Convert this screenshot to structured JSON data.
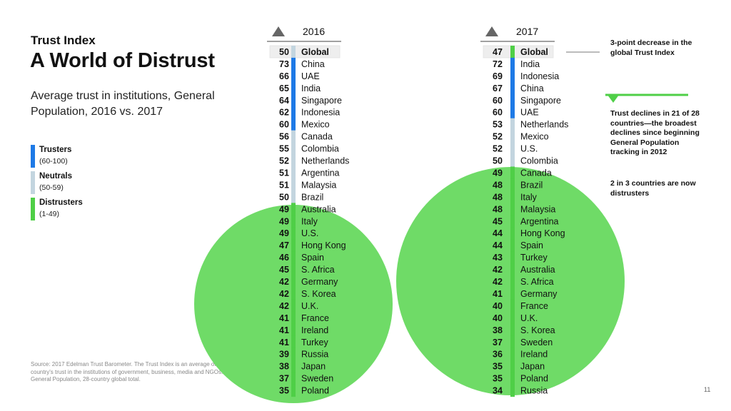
{
  "kicker": "Trust Index",
  "title": "A World of Distrust",
  "subtitle": "Average trust in institutions, General Population, 2016 vs. 2017",
  "legend": [
    {
      "label": "Trusters",
      "range": "(60-100)",
      "color": "#1e7ae6"
    },
    {
      "label": "Neutrals",
      "range": "(50-59)",
      "color": "#c3d5df"
    },
    {
      "label": "Distrusters",
      "range": "(1-49)",
      "color": "#4fcf47"
    }
  ],
  "source": "Source: 2017 Edelman Trust Barometer. The Trust Index is an average of a country's trust in the institutions of government, business, media and NGOs. General Population, 28-country global total.",
  "page_number": "11",
  "notes": {
    "decrease": "3-point decrease in the global Trust Index",
    "declines": "Trust declines in 21 of 28 countries—the broadest declines since beginning General Population tracking in 2012",
    "distrusters": "2 in 3 countries are now distrusters"
  },
  "colors": {
    "trusters": "#1e7ae6",
    "neutrals": "#c3d5df",
    "distrusters": "#4fcf47",
    "circle": "#6fdb67",
    "highlight_row": "#eeeeee"
  },
  "chart_data": {
    "type": "table",
    "series": [
      {
        "name": "2016",
        "rows": [
          {
            "country": "Global",
            "value": 50
          },
          {
            "country": "China",
            "value": 73
          },
          {
            "country": "UAE",
            "value": 66
          },
          {
            "country": "India",
            "value": 65
          },
          {
            "country": "Singapore",
            "value": 64
          },
          {
            "country": "Indonesia",
            "value": 62
          },
          {
            "country": "Mexico",
            "value": 60
          },
          {
            "country": "Canada",
            "value": 56
          },
          {
            "country": "Colombia",
            "value": 55
          },
          {
            "country": "Netherlands",
            "value": 52
          },
          {
            "country": "Argentina",
            "value": 51
          },
          {
            "country": "Malaysia",
            "value": 51
          },
          {
            "country": "Brazil",
            "value": 50
          },
          {
            "country": "Australia",
            "value": 49
          },
          {
            "country": "Italy",
            "value": 49
          },
          {
            "country": "U.S.",
            "value": 49
          },
          {
            "country": "Hong Kong",
            "value": 47
          },
          {
            "country": "Spain",
            "value": 46
          },
          {
            "country": "S. Africa",
            "value": 45
          },
          {
            "country": "Germany",
            "value": 42
          },
          {
            "country": "S. Korea",
            "value": 42
          },
          {
            "country": "U.K.",
            "value": 42
          },
          {
            "country": "France",
            "value": 41
          },
          {
            "country": "Ireland",
            "value": 41
          },
          {
            "country": "Turkey",
            "value": 41
          },
          {
            "country": "Russia",
            "value": 39
          },
          {
            "country": "Japan",
            "value": 38
          },
          {
            "country": "Sweden",
            "value": 37
          },
          {
            "country": "Poland",
            "value": 35
          }
        ]
      },
      {
        "name": "2017",
        "rows": [
          {
            "country": "Global",
            "value": 47
          },
          {
            "country": "India",
            "value": 72
          },
          {
            "country": "Indonesia",
            "value": 69
          },
          {
            "country": "China",
            "value": 67
          },
          {
            "country": "Singapore",
            "value": 60
          },
          {
            "country": "UAE",
            "value": 60
          },
          {
            "country": "Netherlands",
            "value": 53
          },
          {
            "country": "Mexico",
            "value": 52
          },
          {
            "country": "U.S.",
            "value": 52
          },
          {
            "country": "Colombia",
            "value": 50
          },
          {
            "country": "Canada",
            "value": 49
          },
          {
            "country": "Brazil",
            "value": 48
          },
          {
            "country": "Italy",
            "value": 48
          },
          {
            "country": "Malaysia",
            "value": 48
          },
          {
            "country": "Argentina",
            "value": 45
          },
          {
            "country": "Hong Kong",
            "value": 44
          },
          {
            "country": "Spain",
            "value": 44
          },
          {
            "country": "Turkey",
            "value": 43
          },
          {
            "country": "Australia",
            "value": 42
          },
          {
            "country": "S. Africa",
            "value": 42
          },
          {
            "country": "Germany",
            "value": 41
          },
          {
            "country": "France",
            "value": 40
          },
          {
            "country": "U.K.",
            "value": 40
          },
          {
            "country": "S. Korea",
            "value": 38
          },
          {
            "country": "Sweden",
            "value": 37
          },
          {
            "country": "Ireland",
            "value": 36
          },
          {
            "country": "Japan",
            "value": 35
          },
          {
            "country": "Poland",
            "value": 35
          },
          {
            "country": "Russia",
            "value": 34
          }
        ]
      }
    ]
  }
}
